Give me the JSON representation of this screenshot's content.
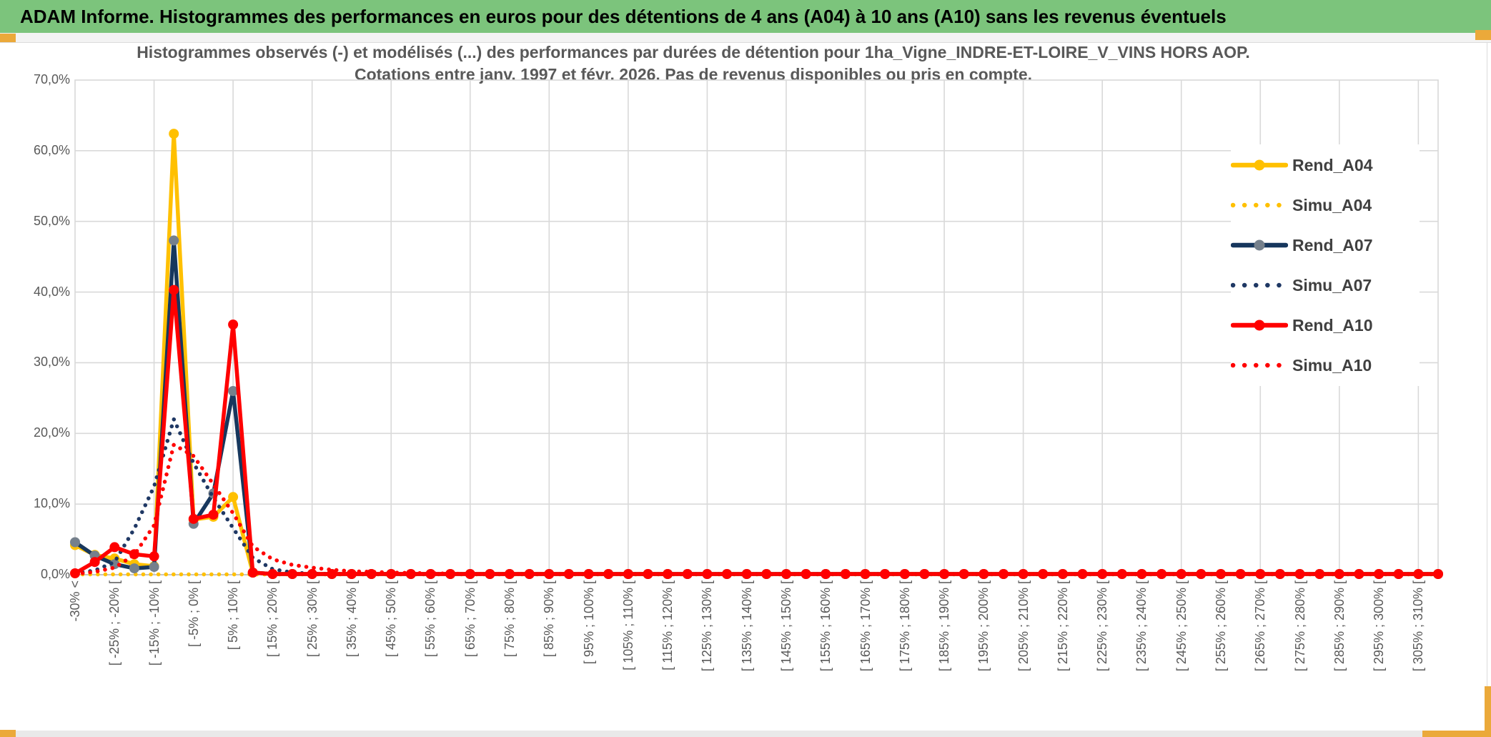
{
  "header": {
    "title": "ADAM Informe. Histogrammes des performances en euros pour des détentions de 4 ans (A04) à 10 ans (A10) sans les revenus éventuels"
  },
  "chart_data": {
    "type": "line",
    "title_line1": "Histogrammes observés (-) et modélisés (...) des performances par durées de détention pour 1ha_Vigne_INDRE-ET-LOIRE_V_VINS HORS AOP.",
    "title_line2": "Cotations entre janv. 1997 et févr. 2026. Pas de revenus disponibles ou pris en compte.",
    "y_axis": {
      "ticks": [
        "70,0%",
        "60,0%",
        "50,0%",
        "40,0%",
        "30,0%",
        "20,0%",
        "10,0%",
        "0,0%"
      ],
      "min_pct": 0,
      "max_pct": 70,
      "grid_step_pct": 10
    },
    "x_axis_note": "bins of 5% width; one tick label every 2 bins; vertical gridline every 4 bins",
    "categories": [
      "-30% <",
      "[ -25% ; -20% [",
      "[ -15% ; -10% [",
      "[ -5% ; 0% [",
      "[ 5% ; 10% [",
      "[ 15% ; 20% [",
      "[ 25% ; 30% [",
      "[ 35% ; 40% [",
      "[ 45% ; 50% [",
      "[ 55% ; 60% [",
      "[ 65% ; 70% [",
      "[ 75% ; 80% [",
      "[ 85% ; 90% [",
      "[ 95% ; 100% [",
      "[ 105% ; 110% [",
      "[ 115% ; 120% [",
      "[ 125% ; 130% [",
      "[ 135% ; 140% [",
      "[ 145% ; 150% [",
      "[ 155% ; 160% [",
      "[ 165% ; 170% [",
      "[ 175% ; 180% [",
      "[ 185% ; 190% [",
      "[ 195% ; 200% [",
      "[ 205% ; 210% [",
      "[ 215% ; 220% [",
      "[ 225% ; 230% [",
      "[ 235% ; 240% [",
      "[ 245% ; 250% [",
      "[ 255% ; 260% [",
      "[ 265% ; 270% [",
      "[ 275% ; 280% [",
      "[ 285% ; 290% [",
      "[ 295% ; 300% [",
      "[ 305% ; 310% ["
    ],
    "bins_per_label": 2,
    "total_bins": 70,
    "legend_position": "top-right-overlay",
    "series": [
      {
        "name": "Rend_A04",
        "style": "solid",
        "color": "#FFC000",
        "marker_color": "#FFC000",
        "values_head": [
          4.2,
          2.8,
          2.3,
          1.5,
          1.2,
          62.4,
          7.8,
          8.2,
          11.0,
          0.3
        ],
        "fill_value": 0.1
      },
      {
        "name": "Simu_A04",
        "style": "dotted",
        "color": "#FFC000",
        "values_head": [],
        "fill_value": 0.05
      },
      {
        "name": "Rend_A07",
        "style": "solid",
        "color": "#17375D",
        "marker_color": "#75808C",
        "values_head": [
          4.6,
          2.7,
          1.5,
          0.9,
          1.1,
          47.3,
          7.2,
          11.5,
          26.0,
          0.3
        ],
        "fill_value": 0.1
      },
      {
        "name": "Simu_A07",
        "style": "dotted",
        "color": "#1F3864",
        "values_head": [
          0.2,
          0.6,
          1.8,
          6.5,
          12.5,
          22.0,
          15.8,
          10.9,
          6.6,
          2.4,
          0.8,
          0.3,
          0.15
        ],
        "fill_value": 0.1
      },
      {
        "name": "Rend_A10",
        "style": "solid",
        "color": "#FF0000",
        "marker_color": "#FF0000",
        "values_head": [
          0.2,
          1.8,
          3.9,
          2.9,
          2.6,
          40.3,
          7.9,
          8.5,
          35.4,
          0.3
        ],
        "fill_value": 0.1
      },
      {
        "name": "Simu_A10",
        "style": "dotted",
        "color": "#FF0000",
        "values_head": [
          0.1,
          0.4,
          1.0,
          2.8,
          7.0,
          18.4,
          16.8,
          12.8,
          8.7,
          4.0,
          2.2,
          1.4,
          1.0,
          0.7,
          0.5,
          0.4,
          0.3,
          0.25,
          0.2,
          0.15
        ],
        "fill_value": 0.1
      }
    ],
    "colors": {
      "gridline": "#D9D9D9",
      "zero_axis": "#BFBFBF",
      "axis_text": "#595959",
      "title_text": "#595959",
      "header_green": "#7CC47C",
      "frame_gold": "#EBA93A"
    }
  }
}
